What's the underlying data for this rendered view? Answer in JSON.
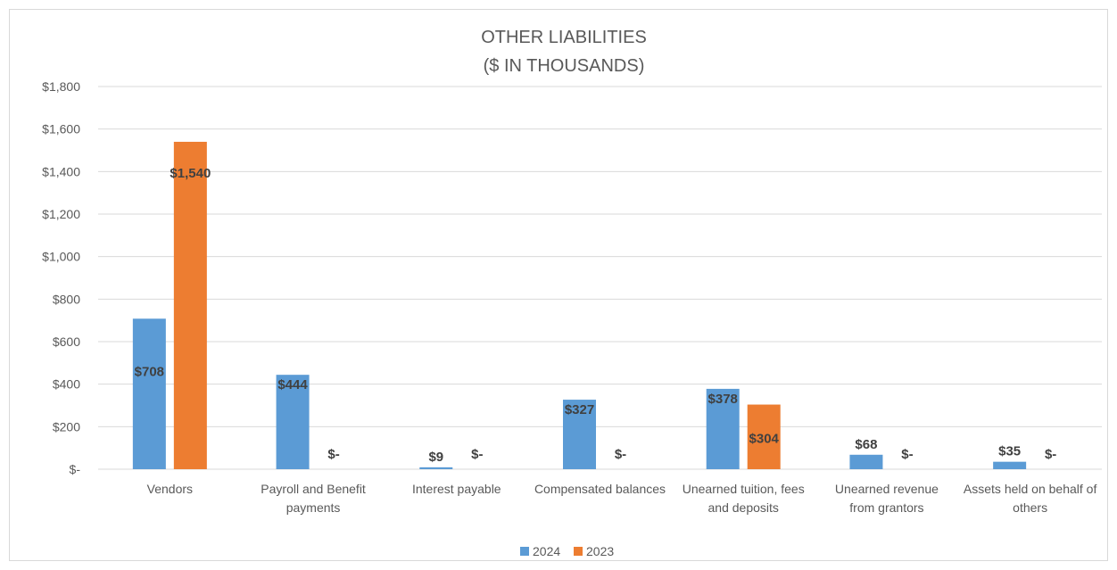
{
  "chart_data": {
    "type": "bar",
    "title": "OTHER LIABILITIES",
    "subtitle": "($ IN THOUSANDS)",
    "categories": [
      [
        "Vendors"
      ],
      [
        "Payroll and Benefit",
        "payments"
      ],
      [
        "Interest payable"
      ],
      [
        "Compensated balances"
      ],
      [
        "Unearned tuition, fees",
        "and deposits"
      ],
      [
        "Unearned revenue",
        "from grantors"
      ],
      [
        "Assets held on behalf of",
        "others"
      ]
    ],
    "series": [
      {
        "name": "2024",
        "color": "#5b9bd5",
        "values": [
          708,
          444,
          9,
          327,
          378,
          68,
          35
        ],
        "labels": [
          "$708",
          "$444",
          "$9",
          "$327",
          "$378",
          "$68",
          "$35"
        ]
      },
      {
        "name": "2023",
        "color": "#ed7d31",
        "values": [
          1540,
          0,
          0,
          0,
          304,
          0,
          0
        ],
        "labels": [
          "$1,540",
          "$-",
          "$-",
          "$-",
          "$304",
          "$-",
          "$-"
        ]
      }
    ],
    "yticks": [
      0,
      200,
      400,
      600,
      800,
      1000,
      1200,
      1400,
      1600,
      1800
    ],
    "ytick_labels": [
      "$-",
      "$200",
      "$400",
      "$600",
      "$800",
      "$1,000",
      "$1,200",
      "$1,400",
      "$1,600",
      "$1,800"
    ],
    "ylim": [
      0,
      1800
    ],
    "grid": true,
    "legend": "bottom"
  }
}
